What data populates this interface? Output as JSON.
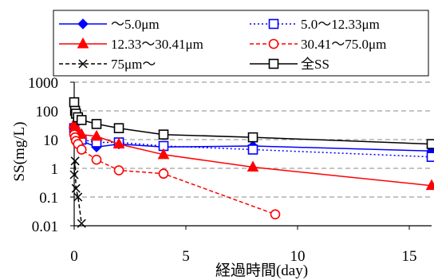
{
  "chart_data": {
    "type": "scatter",
    "xlabel": "経過時間(day)",
    "ylabel": "SS(mg/L)",
    "xlim": [
      0,
      16
    ],
    "ylim": [
      0.01,
      1000
    ],
    "y_scale": "log",
    "x_ticks": [
      0,
      5,
      10,
      15
    ],
    "x_tick_labels": [
      "0",
      "5",
      "10",
      "15"
    ],
    "y_ticks": [
      0.01,
      0.1,
      1,
      10,
      100,
      1000
    ],
    "y_tick_labels": [
      "0.01",
      "0.1",
      "1",
      "10",
      "100",
      "1000"
    ],
    "grid": "horizontal dashed",
    "legend_position": "top",
    "series": [
      {
        "name": "～5.0μm",
        "color": "#0000FF",
        "marker": "diamond-filled",
        "line": "solid",
        "x": [
          0,
          0.04,
          0.08,
          0.17,
          0.33,
          1,
          2,
          4,
          8,
          16
        ],
        "y": [
          30,
          22,
          18,
          12,
          9,
          5.5,
          7,
          5.5,
          6,
          4
        ]
      },
      {
        "name": "5.0～12.33μm",
        "color": "#0000FF",
        "marker": "square-open",
        "line": "dotted",
        "x": [
          0,
          0.04,
          0.08,
          0.17,
          0.33,
          1,
          2,
          4,
          8,
          16
        ],
        "y": [
          25,
          18,
          15,
          12,
          10,
          8,
          8,
          6,
          4.5,
          2.5
        ]
      },
      {
        "name": "12.33～30.41μm",
        "color": "#FF0000",
        "marker": "triangle-filled",
        "line": "solid",
        "x": [
          0,
          0.04,
          0.08,
          0.17,
          0.33,
          1,
          2,
          4,
          8,
          16
        ],
        "y": [
          35,
          28,
          22,
          18,
          15,
          13,
          7,
          3,
          1.1,
          0.25
        ]
      },
      {
        "name": "30.41～75.0μm",
        "color": "#FF0000",
        "marker": "circle-open",
        "line": "dashed",
        "x": [
          0,
          0.04,
          0.08,
          0.17,
          0.33,
          1,
          2,
          4,
          9
        ],
        "y": [
          15,
          12,
          9,
          7,
          4.5,
          2,
          0.85,
          0.65,
          0.025
        ]
      },
      {
        "name": "75μm～",
        "color": "#000000",
        "marker": "x",
        "line": "dashed",
        "x": [
          0,
          0.04,
          0.08,
          0.17,
          0.33
        ],
        "y": [
          0.6,
          1.8,
          0.2,
          0.1,
          0.012
        ]
      },
      {
        "name": "全SS",
        "color": "#000000",
        "marker": "square-open",
        "line": "solid",
        "x": [
          0,
          0.04,
          0.08,
          0.17,
          0.33,
          1,
          2,
          4,
          8,
          16
        ],
        "y": [
          200,
          100,
          80,
          60,
          48,
          35,
          25,
          15,
          12,
          7
        ]
      }
    ]
  }
}
